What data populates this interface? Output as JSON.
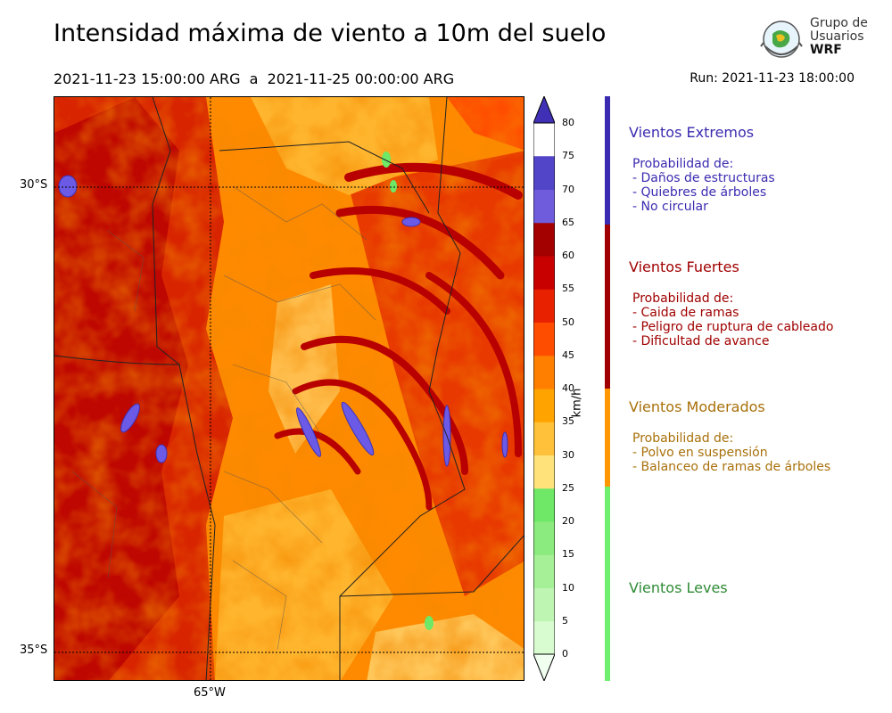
{
  "header": {
    "title": "Intensidad máxima de viento a 10m del suelo",
    "subtitle": "2021-11-23 15:00:00 ARG  a  2021-11-25 00:00:00 ARG",
    "run": "Run: 2021-11-23 18:00:00"
  },
  "logo": {
    "line1": "Grupo de",
    "line2": "Usuarios",
    "line3": "WRF"
  },
  "map": {
    "lat_labels": [
      "30°S",
      "35°S"
    ],
    "lon_labels": [
      "65°W"
    ]
  },
  "colorbar": {
    "unit": "km/h",
    "ticks": [
      "0",
      "5",
      "10",
      "15",
      "20",
      "25",
      "30",
      "35",
      "40",
      "45",
      "50",
      "55",
      "60",
      "65",
      "70",
      "75",
      "80"
    ],
    "colors": [
      "#f0fff0",
      "#d8fbd0",
      "#bff5b3",
      "#a6f097",
      "#8ceb7e",
      "#6ee866",
      "#ffe37a",
      "#ffc13a",
      "#ffa300",
      "#ff7f00",
      "#ff4d00",
      "#e82200",
      "#c80000",
      "#a30000",
      "#6f5cdc",
      "#5245c8",
      "#3f30b5"
    ]
  },
  "categories": [
    {
      "title": "Vientos Extremos",
      "color": "#3a2bb0",
      "desc": [
        "Probabilidad de:",
        "- Daños de estructuras",
        "- Quiebres de árboles",
        "- No circular"
      ]
    },
    {
      "title": "Vientos Fuertes",
      "color": "#a00000",
      "desc": [
        "Probabilidad de:",
        "- Caida de ramas",
        "- Peligro de ruptura de cableado",
        "- Dificultad de avance"
      ]
    },
    {
      "title": "Vientos Moderados",
      "color": "#a8700a",
      "desc": [
        "Probabilidad de:",
        "- Polvo en suspensión",
        "- Balanceo de ramas de árboles"
      ]
    },
    {
      "title": "Vientos Leves",
      "color": "#2e8b35",
      "desc": []
    }
  ]
}
